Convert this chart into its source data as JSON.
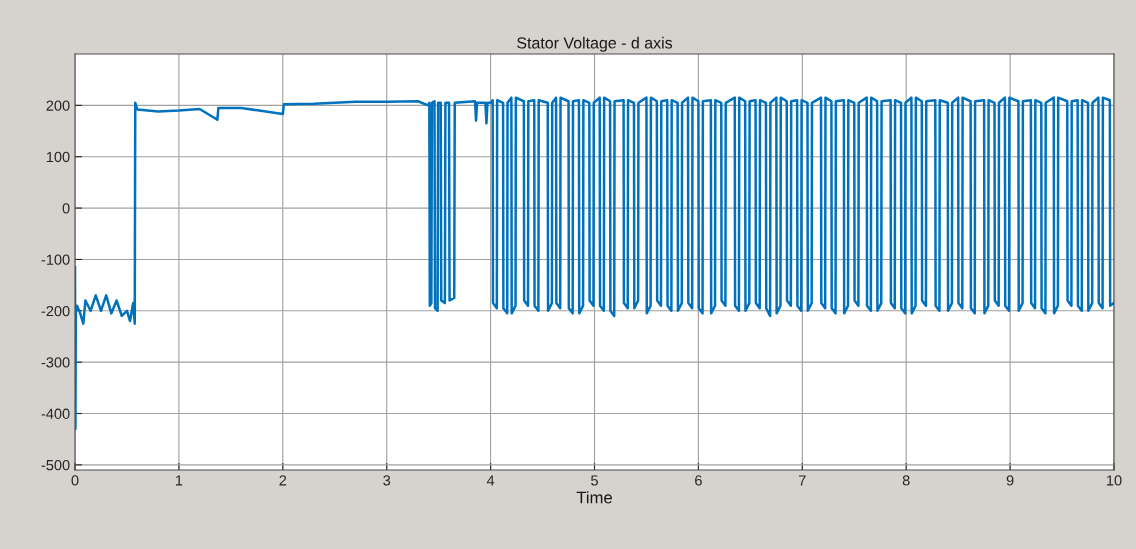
{
  "chart_data": {
    "type": "line",
    "title": "Stator Voltage - d axis",
    "xlabel": "Time",
    "xlim": [
      0,
      10
    ],
    "ylim": [
      -510,
      300
    ],
    "xticks": [
      0,
      1,
      2,
      3,
      4,
      5,
      6,
      7,
      8,
      9,
      10
    ],
    "yticks": [
      -500,
      -400,
      -300,
      -200,
      -100,
      0,
      100,
      200
    ],
    "grid": true,
    "legend": false,
    "series": [
      {
        "color": "#0072bd",
        "x": [
          0,
          0.004,
          0.008,
          0.02,
          0.05,
          0.08,
          0.1,
          0.15,
          0.2,
          0.25,
          0.3,
          0.35,
          0.4,
          0.45,
          0.5,
          0.53,
          0.56,
          0.575,
          0.58,
          0.6,
          0.8,
          1.0,
          1.2,
          1.37,
          1.38,
          1.6,
          2.0,
          2.01,
          2.3,
          2.7,
          3.0,
          3.3,
          3.4,
          3.41,
          3.415,
          3.43,
          3.435,
          3.46,
          3.465,
          3.49,
          3.495,
          3.52,
          3.525,
          3.56,
          3.565,
          3.6,
          3.605,
          3.65,
          3.655,
          3.85,
          3.86,
          3.87,
          3.95,
          3.96,
          3.97,
          4.0,
          4.02,
          4.023,
          4.06,
          4.063,
          4.12,
          4.123,
          4.16,
          4.163,
          4.2,
          4.203,
          4.24,
          4.243,
          4.32,
          4.323,
          4.36,
          4.363,
          4.42,
          4.423,
          4.46,
          4.463,
          4.55,
          4.553,
          4.59,
          4.593,
          4.63,
          4.633,
          4.67,
          4.673,
          4.75,
          4.753,
          4.79,
          4.793,
          4.85,
          4.853,
          4.89,
          4.893,
          4.95,
          4.953,
          4.99,
          4.993,
          5.05,
          5.053,
          5.09,
          5.093,
          5.15,
          5.153,
          5.19,
          5.193,
          5.28,
          5.283,
          5.32,
          5.323,
          5.38,
          5.383,
          5.42,
          5.423,
          5.5,
          5.503,
          5.54,
          5.543,
          5.6,
          5.603,
          5.64,
          5.643,
          5.7,
          5.703,
          5.74,
          5.743,
          5.8,
          5.803,
          5.84,
          5.843,
          5.9,
          5.903,
          5.94,
          5.943,
          6.0,
          6.003,
          6.04,
          6.043,
          6.12,
          6.123,
          6.16,
          6.163,
          6.22,
          6.223,
          6.26,
          6.263,
          6.35,
          6.353,
          6.39,
          6.393,
          6.45,
          6.453,
          6.49,
          6.493,
          6.55,
          6.553,
          6.59,
          6.593,
          6.65,
          6.653,
          6.69,
          6.693,
          6.75,
          6.753,
          6.79,
          6.793,
          6.85,
          6.853,
          6.89,
          6.893,
          6.95,
          6.953,
          6.99,
          6.993,
          7.05,
          7.053,
          7.09,
          7.093,
          7.18,
          7.183,
          7.22,
          7.223,
          7.28,
          7.283,
          7.32,
          7.323,
          7.4,
          7.403,
          7.44,
          7.443,
          7.5,
          7.503,
          7.54,
          7.543,
          7.62,
          7.623,
          7.66,
          7.663,
          7.72,
          7.723,
          7.76,
          7.763,
          7.85,
          7.853,
          7.89,
          7.893,
          7.95,
          7.953,
          7.99,
          7.993,
          8.05,
          8.053,
          8.09,
          8.093,
          8.15,
          8.153,
          8.19,
          8.193,
          8.28,
          8.283,
          8.32,
          8.323,
          8.4,
          8.403,
          8.44,
          8.443,
          8.5,
          8.503,
          8.54,
          8.543,
          8.62,
          8.623,
          8.66,
          8.663,
          8.75,
          8.753,
          8.79,
          8.793,
          8.85,
          8.853,
          8.89,
          8.893,
          8.95,
          8.953,
          8.99,
          8.993,
          9.08,
          9.083,
          9.12,
          9.123,
          9.2,
          9.203,
          9.24,
          9.243,
          9.3,
          9.303,
          9.34,
          9.343,
          9.42,
          9.423,
          9.46,
          9.463,
          9.55,
          9.553,
          9.59,
          9.593,
          9.65,
          9.653,
          9.69,
          9.693,
          9.75,
          9.753,
          9.79,
          9.793,
          9.85,
          9.853,
          9.89,
          9.893,
          9.96,
          9.963,
          10
        ],
        "values": [
          -115,
          -430,
          -200,
          -190,
          -205,
          -225,
          -180,
          -200,
          -170,
          -200,
          -170,
          -205,
          -180,
          -210,
          -200,
          -220,
          -185,
          -225,
          205,
          192,
          188,
          190,
          193,
          172,
          195,
          195,
          183,
          202,
          203,
          207,
          207,
          208,
          200,
          205,
          -190,
          -185,
          205,
          208,
          -195,
          -200,
          205,
          205,
          -180,
          -185,
          205,
          205,
          -180,
          -175,
          205,
          208,
          170,
          205,
          205,
          165,
          205,
          205,
          210,
          -185,
          -195,
          210,
          205,
          -195,
          -205,
          205,
          215,
          -205,
          -190,
          215,
          208,
          -180,
          -190,
          208,
          210,
          -190,
          -200,
          210,
          205,
          -200,
          -185,
          205,
          215,
          -185,
          -195,
          215,
          208,
          -195,
          -205,
          208,
          210,
          -205,
          -190,
          210,
          205,
          -180,
          -190,
          205,
          215,
          -190,
          -200,
          215,
          208,
          -200,
          -210,
          208,
          210,
          -185,
          -195,
          210,
          205,
          -195,
          -180,
          205,
          215,
          -205,
          -190,
          215,
          208,
          -180,
          -190,
          208,
          210,
          -190,
          -200,
          210,
          205,
          -200,
          -185,
          205,
          215,
          -185,
          -195,
          215,
          208,
          -195,
          -205,
          208,
          210,
          -205,
          -190,
          210,
          205,
          -180,
          -190,
          205,
          215,
          -190,
          -200,
          215,
          208,
          -200,
          -185,
          208,
          210,
          -185,
          -195,
          210,
          205,
          -195,
          -210,
          205,
          215,
          -205,
          -190,
          215,
          208,
          -180,
          -190,
          208,
          210,
          -190,
          -200,
          210,
          205,
          -200,
          -185,
          205,
          215,
          -185,
          -195,
          215,
          208,
          -195,
          -205,
          208,
          210,
          -205,
          -190,
          210,
          205,
          -180,
          -190,
          205,
          215,
          -190,
          -200,
          215,
          208,
          -200,
          -185,
          208,
          210,
          -185,
          -195,
          210,
          205,
          -195,
          -205,
          205,
          215,
          -205,
          -190,
          215,
          208,
          -180,
          -190,
          208,
          210,
          -190,
          -200,
          210,
          205,
          -200,
          -185,
          205,
          215,
          -185,
          -195,
          215,
          208,
          -195,
          -205,
          208,
          210,
          -205,
          -190,
          210,
          205,
          -180,
          -190,
          205,
          215,
          -190,
          -200,
          215,
          208,
          -200,
          -185,
          208,
          210,
          -185,
          -195,
          210,
          205,
          -195,
          -205,
          205,
          215,
          -205,
          -190,
          215,
          208,
          -180,
          -190,
          208,
          210,
          -190,
          -200,
          210,
          205,
          -200,
          -185,
          205,
          215,
          -185,
          -195,
          215,
          210,
          -190,
          -185
        ]
      }
    ]
  }
}
